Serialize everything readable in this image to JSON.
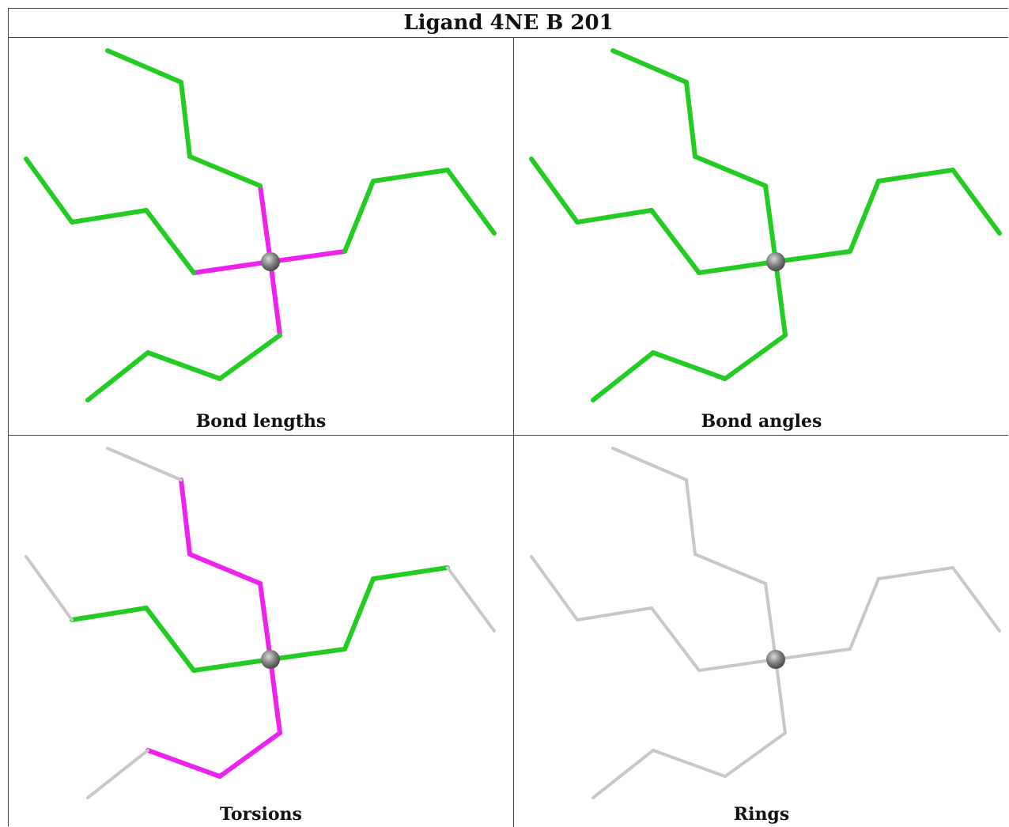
{
  "title": "Ligand 4NE B 201",
  "colors": {
    "green": "#22cc22",
    "magenta": "#ee22ee",
    "gray": "#c8c8c8",
    "atom": "#7a7a7a"
  },
  "panels": [
    {
      "caption": "Bond lengths",
      "default_color": "green",
      "highlight": "lengths"
    },
    {
      "caption": "Bond angles",
      "default_color": "green",
      "highlight": "none"
    },
    {
      "caption": "Torsions",
      "default_color": "gray",
      "highlight": "torsions"
    },
    {
      "caption": "Rings",
      "default_color": "gray",
      "highlight": "none"
    }
  ]
}
